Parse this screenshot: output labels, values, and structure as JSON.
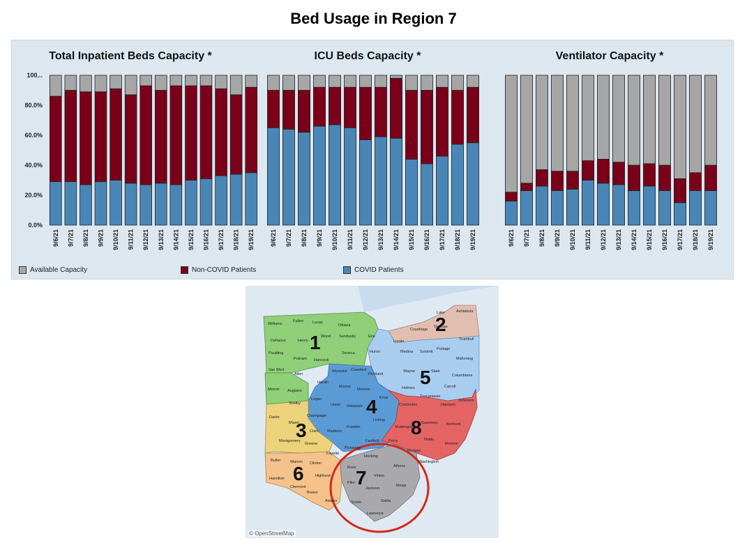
{
  "title": "Bed Usage in Region 7",
  "colors": {
    "available": "#a6a6a6",
    "non_covid": "#7a0019",
    "covid": "#4a86b5",
    "region1": "#8fcf77",
    "region2": "#e2beb1",
    "region3": "#ecd27a",
    "region4": "#5b9bd5",
    "region5": "#a9cdef",
    "region6": "#f4c28a",
    "region7": "#a9a9ad",
    "region8": "#e46464",
    "highlight": "#d62718"
  },
  "legend": [
    {
      "label": "Available Capacity",
      "color": "#a6a6a6"
    },
    {
      "label": "Non-COVID Patients",
      "color": "#7a0019"
    },
    {
      "label": "COVID Patients",
      "color": "#4a86b5"
    }
  ],
  "map": {
    "attribution": "© OpenStreetMap",
    "regions": [
      "1",
      "2",
      "3",
      "4",
      "5",
      "6",
      "7",
      "8"
    ],
    "counties": [
      "Williams",
      "Fulton",
      "Lucas",
      "Ottawa",
      "Defiance",
      "Henry",
      "Wood",
      "Sandusky",
      "Erie",
      "Lake",
      "Ashtabula",
      "Cuyahoga",
      "Lorain",
      "Geauga",
      "Trumbull",
      "Paulding",
      "Putnam",
      "Hancock",
      "Seneca",
      "Huron",
      "Medina",
      "Summit",
      "Portage",
      "Mahoning",
      "Van Wert",
      "Allen",
      "Wyandot",
      "Crawford",
      "Richland",
      "Wayne",
      "Stark",
      "Columbiana",
      "Hardin",
      "Marion",
      "Morrow",
      "Holmes",
      "Carroll",
      "Mercer",
      "Auglaize",
      "Logan",
      "Union",
      "Delaware",
      "Knox",
      "Tuscarawas",
      "Jefferson",
      "Coshocton",
      "Harrison",
      "Shelby",
      "Champaign",
      "Licking",
      "Darke",
      "Miami",
      "Clark",
      "Franklin",
      "Madison",
      "Muskingum",
      "Guernsey",
      "Belmont",
      "Montgomery",
      "Greene",
      "Fairfield",
      "Perry",
      "Noble",
      "Monroe",
      "Pickaway",
      "Fayette",
      "Morgan",
      "Washington",
      "Butler",
      "Warren",
      "Clinton",
      "Hocking",
      "Athens",
      "Ross",
      "Hamilton",
      "Clermont",
      "Highland",
      "Vinton",
      "Pike",
      "Jackson",
      "Meigs",
      "Brown",
      "Adams",
      "Scioto",
      "Gallia",
      "Lawrence"
    ]
  },
  "chart_data": [
    {
      "type": "bar",
      "stacked": true,
      "title": "Total Inpatient Beds Capacity *",
      "categories": [
        "9/6/21",
        "9/7/21",
        "9/8/21",
        "9/9/21",
        "9/10/21",
        "9/11/21",
        "9/12/21",
        "9/13/21",
        "9/14/21",
        "9/15/21",
        "9/16/21",
        "9/17/21",
        "9/18/21",
        "9/19/21"
      ],
      "yticks": [
        "0.0%",
        "20.0%",
        "40.0%",
        "60.0%",
        "80.0%",
        "100..."
      ],
      "ylim": [
        0,
        100
      ],
      "series": [
        {
          "name": "COVID Patients",
          "color": "#4a86b5",
          "values": [
            29,
            29,
            27,
            29,
            30,
            28,
            27,
            28,
            27,
            30,
            31,
            33,
            34,
            35
          ]
        },
        {
          "name": "Non-COVID Patients",
          "color": "#7a0019",
          "values": [
            57,
            61,
            62,
            60,
            61,
            59,
            66,
            62,
            66,
            63,
            62,
            58,
            53,
            57
          ]
        },
        {
          "name": "Available Capacity",
          "color": "#a6a6a6",
          "values": [
            14,
            10,
            11,
            11,
            9,
            13,
            7,
            10,
            7,
            7,
            7,
            9,
            13,
            8
          ]
        }
      ]
    },
    {
      "type": "bar",
      "stacked": true,
      "title": "ICU Beds Capacity *",
      "categories": [
        "9/6/21",
        "9/7/21",
        "9/8/21",
        "9/9/21",
        "9/10/21",
        "9/11/21",
        "9/12/21",
        "9/13/21",
        "9/14/21",
        "9/15/21",
        "9/16/21",
        "9/17/21",
        "9/18/21",
        "9/19/21"
      ],
      "ylim": [
        0,
        100
      ],
      "series": [
        {
          "name": "COVID Patients",
          "color": "#4a86b5",
          "values": [
            65,
            64,
            62,
            66,
            67,
            65,
            57,
            59,
            58,
            44,
            41,
            46,
            54,
            55
          ]
        },
        {
          "name": "Non-COVID Patients",
          "color": "#7a0019",
          "values": [
            25,
            26,
            28,
            26,
            25,
            27,
            35,
            33,
            40,
            46,
            49,
            46,
            36,
            37
          ]
        },
        {
          "name": "Available Capacity",
          "color": "#a6a6a6",
          "values": [
            10,
            10,
            10,
            8,
            8,
            8,
            8,
            8,
            2,
            10,
            10,
            8,
            10,
            8
          ]
        }
      ]
    },
    {
      "type": "bar",
      "stacked": true,
      "title": "Ventilator Capacity *",
      "categories": [
        "9/6/21",
        "9/7/21",
        "9/8/21",
        "9/9/21",
        "9/10/21",
        "9/11/21",
        "9/12/21",
        "9/13/21",
        "9/14/21",
        "9/15/21",
        "9/16/21",
        "9/17/21",
        "9/18/21",
        "9/19/21"
      ],
      "ylim": [
        0,
        100
      ],
      "series": [
        {
          "name": "COVID Patients",
          "color": "#4a86b5",
          "values": [
            16,
            23,
            26,
            23,
            24,
            30,
            28,
            27,
            23,
            26,
            23,
            15,
            23,
            23
          ]
        },
        {
          "name": "Non-COVID Patients",
          "color": "#7a0019",
          "values": [
            6,
            5,
            11,
            13,
            12,
            13,
            16,
            15,
            17,
            15,
            17,
            16,
            12,
            17
          ]
        },
        {
          "name": "Available Capacity",
          "color": "#a6a6a6",
          "values": [
            78,
            72,
            63,
            64,
            64,
            57,
            56,
            58,
            60,
            59,
            60,
            69,
            65,
            60
          ]
        }
      ]
    }
  ]
}
